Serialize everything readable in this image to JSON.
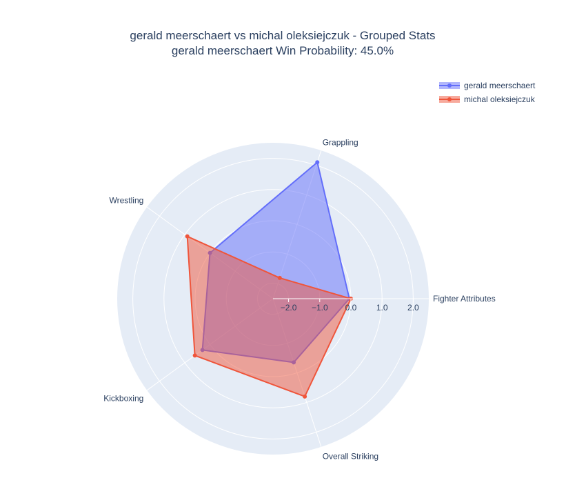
{
  "chart_data": {
    "type": "radar",
    "title": "gerald meerschaert vs michal oleksiejczuk - Grouped Stats",
    "subtitle": "gerald meerschaert Win Probability: 45.0%",
    "categories": [
      "Fighter Attributes",
      "Overall Striking",
      "Kickboxing",
      "Wrestling",
      "Grappling"
    ],
    "radial_range": [
      -2.5,
      2.5
    ],
    "radial_ticks": [
      -2.0,
      -1.0,
      0.0,
      1.0,
      2.0
    ],
    "radial_tick_labels": [
      "−2.0",
      "−1.0",
      "0.0",
      "1.0",
      "2.0"
    ],
    "grid": true,
    "legend_position": "top-right",
    "series": [
      {
        "name": "gerald meerschaert",
        "color": "#636efa",
        "values": [
          -0.05,
          -0.35,
          0.3,
          0.0,
          2.1
        ]
      },
      {
        "name": "michal oleksiejczuk",
        "color": "#ef553b",
        "values": [
          0.0,
          0.8,
          0.6,
          0.9,
          -1.8
        ]
      }
    ]
  }
}
